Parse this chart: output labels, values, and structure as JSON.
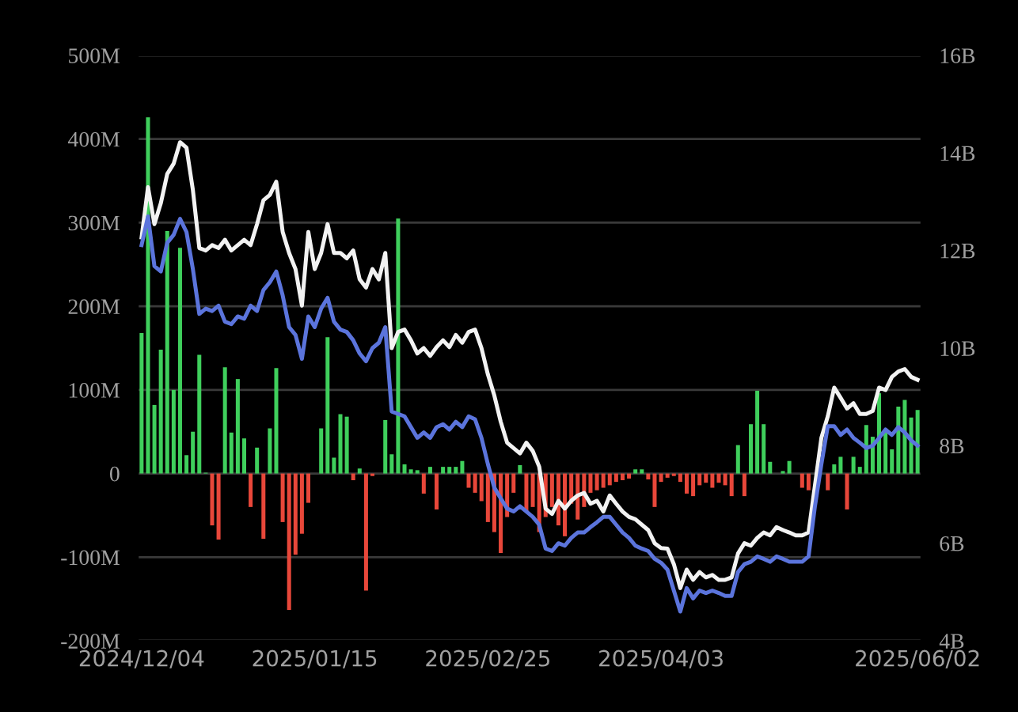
{
  "chart_data": {
    "type": "bar",
    "categories": [
      "2024/12/04",
      null,
      null,
      null,
      null,
      null,
      null,
      null,
      null,
      null,
      null,
      null,
      null,
      null,
      null,
      null,
      null,
      null,
      null,
      null,
      null,
      null,
      null,
      null,
      null,
      null,
      null,
      "2025/01/15",
      null,
      null,
      null,
      null,
      null,
      null,
      null,
      null,
      null,
      null,
      null,
      null,
      null,
      null,
      null,
      null,
      null,
      null,
      null,
      null,
      null,
      null,
      null,
      null,
      null,
      null,
      "2025/02/25",
      null,
      null,
      null,
      null,
      null,
      null,
      null,
      null,
      null,
      null,
      null,
      null,
      null,
      null,
      null,
      null,
      null,
      null,
      null,
      null,
      null,
      null,
      null,
      null,
      null,
      null,
      "2025/04/03",
      null,
      null,
      null,
      null,
      null,
      null,
      null,
      null,
      null,
      null,
      null,
      null,
      null,
      null,
      null,
      null,
      null,
      null,
      null,
      null,
      null,
      null,
      null,
      null,
      null,
      null,
      null,
      null,
      null,
      null,
      null,
      null,
      null,
      null,
      null,
      null,
      null,
      null,
      null,
      "2025/06/02"
    ],
    "series": [
      {
        "values": [
          168,
          426,
          82,
          148,
          290,
          100,
          270,
          22,
          50,
          142,
          1,
          -62,
          -79,
          127,
          49,
          113,
          42,
          -40,
          31,
          -78,
          54,
          126,
          -58,
          -163,
          -97,
          -72,
          -35,
          0,
          54,
          163,
          19,
          71,
          68,
          -8,
          6,
          -140,
          -3,
          0,
          64,
          23,
          305,
          11,
          5,
          4,
          -24,
          8,
          -43,
          8,
          8,
          8,
          15,
          -17,
          -23,
          -33,
          -58,
          -70,
          -95,
          -52,
          -23,
          10,
          -45,
          -40,
          -70,
          -52,
          -40,
          -62,
          -75,
          -36,
          -55,
          -40,
          -23,
          -20,
          -17,
          -14,
          -10,
          -8,
          -6,
          5,
          5,
          -7,
          -40,
          -10,
          -5,
          -3,
          -10,
          -24,
          -27,
          -14,
          -11,
          -17,
          -11,
          -14,
          -27,
          34,
          -27,
          59,
          99,
          59,
          14,
          0,
          3,
          15,
          0,
          -17,
          -20,
          null,
          null,
          -20,
          11,
          20,
          -43,
          20,
          8,
          58,
          44,
          96,
          50,
          29,
          80,
          88,
          67,
          76
        ],
        "colors": [
          "#3fcf5c",
          "#3fcf5c",
          "#3fcf5c",
          "#3fcf5c",
          "#3fcf5c",
          "#3fcf5c",
          "#3fcf5c",
          "#3fcf5c",
          "#3fcf5c",
          "#3fcf5c",
          "#3fcf5c",
          "#e8473a",
          "#e8473a",
          "#3fcf5c",
          "#3fcf5c",
          "#3fcf5c",
          "#3fcf5c",
          "#e8473a",
          "#3fcf5c",
          "#e8473a",
          "#3fcf5c",
          "#3fcf5c",
          "#e8473a",
          "#e8473a",
          "#e8473a",
          "#e8473a",
          "#e8473a",
          "#3fcf5c",
          "#3fcf5c",
          "#3fcf5c",
          "#3fcf5c",
          "#3fcf5c",
          "#3fcf5c",
          "#e8473a",
          "#3fcf5c",
          "#e8473a",
          "#e8473a",
          "#3fcf5c",
          "#3fcf5c",
          "#3fcf5c",
          "#3fcf5c",
          "#3fcf5c",
          "#3fcf5c",
          "#3fcf5c",
          "#e8473a",
          "#3fcf5c",
          "#e8473a",
          "#3fcf5c",
          "#3fcf5c",
          "#3fcf5c",
          "#3fcf5c",
          "#e8473a",
          "#e8473a",
          "#e8473a",
          "#e8473a",
          "#e8473a",
          "#e8473a",
          "#e8473a",
          "#e8473a",
          "#3fcf5c",
          "#e8473a",
          "#e8473a",
          "#e8473a",
          "#e8473a",
          "#e8473a",
          "#e8473a",
          "#e8473a",
          "#e8473a",
          "#e8473a",
          "#e8473a",
          "#e8473a",
          "#e8473a",
          "#e8473a",
          "#e8473a",
          "#e8473a",
          "#e8473a",
          "#e8473a",
          "#3fcf5c",
          "#3fcf5c",
          "#e8473a",
          "#e8473a",
          "#e8473a",
          "#e8473a",
          "#e8473a",
          "#e8473a",
          "#e8473a",
          "#e8473a",
          "#e8473a",
          "#e8473a",
          "#e8473a",
          "#e8473a",
          "#e8473a",
          "#e8473a",
          "#3fcf5c",
          "#e8473a",
          "#3fcf5c",
          "#3fcf5c",
          "#3fcf5c",
          "#3fcf5c",
          "#3fcf5c",
          "#3fcf5c",
          "#3fcf5c",
          "#3fcf5c",
          "#e8473a",
          "#e8473a",
          "#e8473a",
          "#3fcf5c",
          "#e8473a",
          "#3fcf5c",
          "#3fcf5c",
          "#e8473a",
          "#3fcf5c",
          "#3fcf5c",
          "#3fcf5c",
          "#3fcf5c",
          "#3fcf5c",
          "#3fcf5c",
          "#3fcf5c",
          "#3fcf5c",
          "#3fcf5c",
          "#3fcf5c",
          "#3fcf5c"
        ]
      },
      {
        "type": "line",
        "axis": "y2",
        "color": "#f2f2f2",
        "values": [
          12.27,
          13.3,
          12.54,
          12.97,
          13.57,
          13.78,
          14.22,
          14.11,
          13.24,
          12.05,
          12.0,
          12.11,
          12.05,
          12.22,
          12.0,
          12.11,
          12.22,
          12.11,
          12.54,
          13.03,
          13.14,
          13.41,
          12.38,
          11.95,
          11.62,
          10.87,
          12.38,
          11.62,
          11.95,
          12.54,
          11.95,
          11.95,
          11.84,
          12.0,
          11.41,
          11.24,
          11.62,
          11.41,
          11.95,
          10.0,
          10.33,
          10.38,
          10.16,
          9.89,
          10.0,
          9.84,
          10.02,
          10.16,
          10.02,
          10.27,
          10.11,
          10.33,
          10.38,
          10.0,
          9.46,
          9.03,
          8.49,
          8.06,
          7.95,
          7.84,
          8.06,
          7.89,
          7.57,
          6.71,
          6.6,
          6.87,
          6.71,
          6.87,
          6.98,
          7.03,
          6.81,
          6.87,
          6.65,
          6.98,
          6.81,
          6.65,
          6.54,
          6.49,
          6.38,
          6.27,
          6.0,
          5.9,
          5.89,
          5.57,
          5.08,
          5.46,
          5.25,
          5.41,
          5.3,
          5.35,
          5.25,
          5.25,
          5.3,
          5.79,
          6.0,
          5.95,
          6.11,
          6.22,
          6.16,
          6.33,
          6.27,
          6.22,
          6.16,
          6.16,
          6.22,
          7.19,
          8.16,
          8.6,
          9.19,
          8.98,
          8.76,
          8.87,
          8.65,
          8.65,
          8.71,
          9.19,
          9.14,
          9.41,
          9.52,
          9.57,
          9.41,
          9.35
        ]
      },
      {
        "type": "line",
        "axis": "y2",
        "color": "#5b74dc",
        "values": [
          12.11,
          12.7,
          11.68,
          11.57,
          12.16,
          12.32,
          12.65,
          12.38,
          11.62,
          10.7,
          10.81,
          10.76,
          10.87,
          10.54,
          10.49,
          10.65,
          10.6,
          10.87,
          10.76,
          11.19,
          11.35,
          11.57,
          11.08,
          10.43,
          10.27,
          9.78,
          10.65,
          10.43,
          10.81,
          11.03,
          10.54,
          10.38,
          10.33,
          10.16,
          9.89,
          9.73,
          10.0,
          10.11,
          10.43,
          8.7,
          8.65,
          8.6,
          8.38,
          8.16,
          8.27,
          8.16,
          8.38,
          8.44,
          8.33,
          8.49,
          8.38,
          8.6,
          8.54,
          8.16,
          7.62,
          7.14,
          6.92,
          6.71,
          6.65,
          6.76,
          6.65,
          6.54,
          6.38,
          5.89,
          5.84,
          6.0,
          5.95,
          6.11,
          6.22,
          6.22,
          6.33,
          6.43,
          6.54,
          6.54,
          6.38,
          6.22,
          6.11,
          5.95,
          5.89,
          5.84,
          5.68,
          5.6,
          5.46,
          5.03,
          4.6,
          5.08,
          4.87,
          5.03,
          4.98,
          5.03,
          4.98,
          4.92,
          4.92,
          5.41,
          5.57,
          5.62,
          5.73,
          5.68,
          5.62,
          5.73,
          5.68,
          5.62,
          5.62,
          5.62,
          5.73,
          6.76,
          7.62,
          8.4,
          8.4,
          8.22,
          8.33,
          8.16,
          8.06,
          7.95,
          8.0,
          8.16,
          8.33,
          8.22,
          8.38,
          8.27,
          8.11,
          8.0
        ]
      }
    ],
    "ylim": [
      -200,
      500
    ],
    "yticks": [
      {
        "value": -200,
        "label": "-200M"
      },
      {
        "value": -100,
        "label": "-100M"
      },
      0,
      {
        "value": 100,
        "label": "100M"
      },
      {
        "value": 200,
        "label": "200M"
      },
      {
        "value": 300,
        "label": "300M"
      },
      {
        "value": 400,
        "label": "400M"
      },
      {
        "value": 500,
        "label": "500M"
      }
    ],
    "y2lim": [
      4,
      16
    ],
    "y2ticks": [
      {
        "value": 4,
        "label": "4B"
      },
      {
        "value": 6,
        "label": "6B"
      },
      {
        "value": 8,
        "label": "8B"
      },
      {
        "value": 10,
        "label": "10B"
      },
      {
        "value": 12,
        "label": "12B"
      },
      {
        "value": 14,
        "label": "14B"
      },
      {
        "value": 16,
        "label": "16B"
      }
    ],
    "grid": "y",
    "line_style": "solid"
  }
}
